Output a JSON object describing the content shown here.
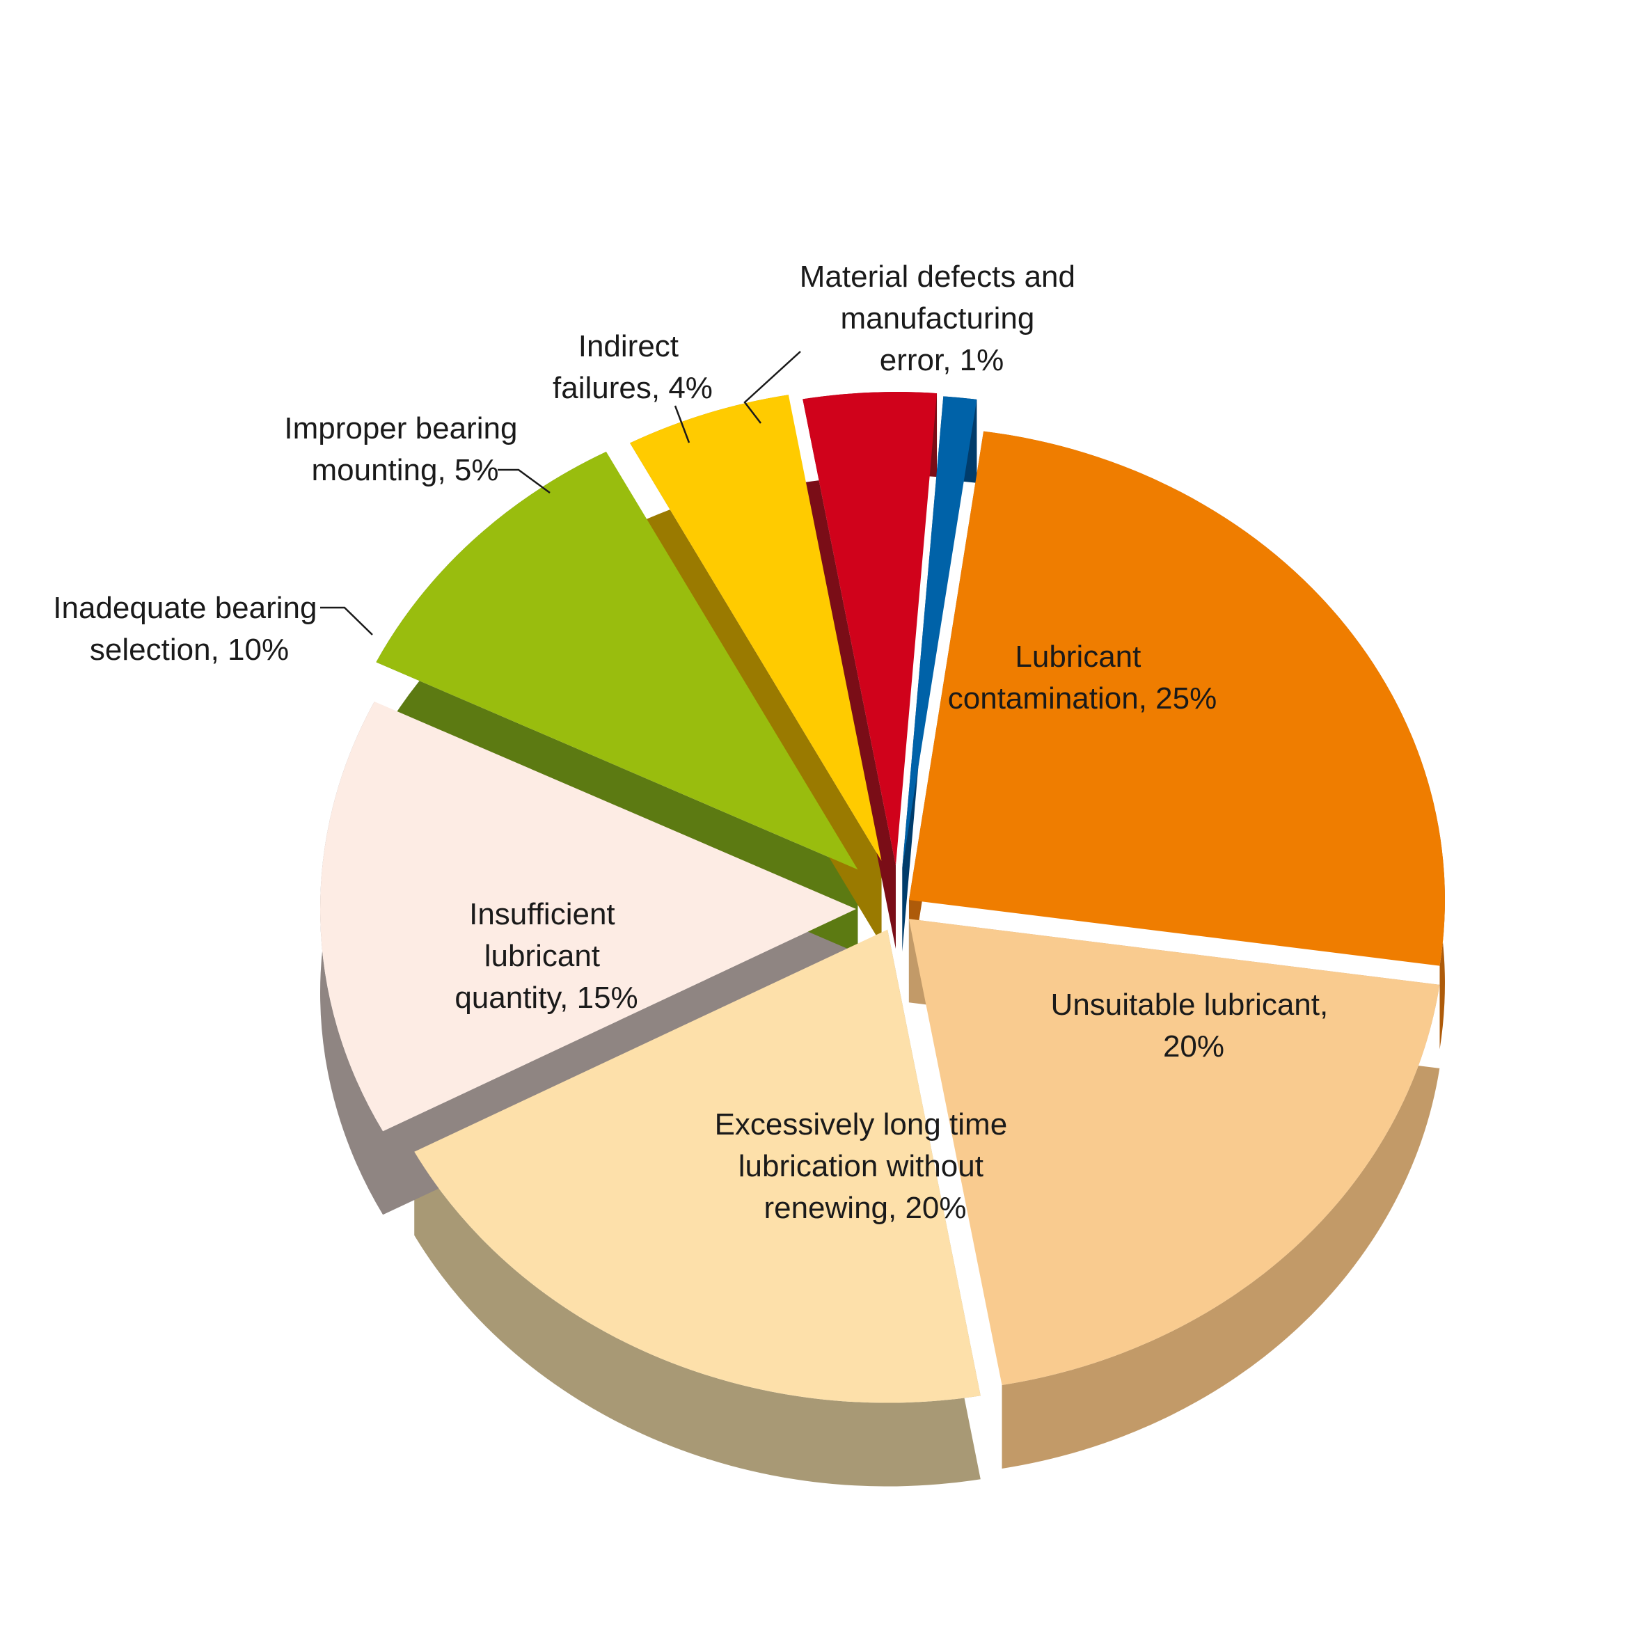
{
  "chart_data": {
    "type": "pie",
    "title": "",
    "slices": [
      {
        "label_lines": [
          "Lubricant",
          "contamination, 25%"
        ],
        "value": 25,
        "color": "#ef7d00",
        "side_color": "#ae5b0a"
      },
      {
        "label_lines": [
          "Unsuitable lubricant,",
          "20%"
        ],
        "value": 20,
        "color": "#f9cb8f",
        "side_color": "#c29a68"
      },
      {
        "label_lines": [
          "Excessively long time",
          "lubrication without",
          "renewing, 20%"
        ],
        "value": 20,
        "color": "#fde0aa",
        "side_color": "#a89975"
      },
      {
        "label_lines": [
          "Insufficient",
          "lubricant",
          "quantity, 15%"
        ],
        "value": 15,
        "color": "#fdece4",
        "side_color": "#8f8582"
      },
      {
        "label_lines": [
          "Inadequate bearing",
          "selection, 10%"
        ],
        "value": 10,
        "color": "#99bd0e",
        "side_color": "#5c7a12"
      },
      {
        "label_lines": [
          "Improper bearing",
          "mounting, 5%"
        ],
        "value": 5,
        "color": "#ffcb00",
        "side_color": "#9a7a00"
      },
      {
        "label_lines": [
          "Indirect",
          "failures, 4%"
        ],
        "value": 4,
        "color": "#d0021b",
        "side_color": "#7a0d17"
      },
      {
        "label_lines": [
          "Material defects and",
          "manufacturing",
          "error, 1%"
        ],
        "value": 1,
        "color": "#0062a8",
        "side_color": "#003c6b"
      }
    ]
  }
}
